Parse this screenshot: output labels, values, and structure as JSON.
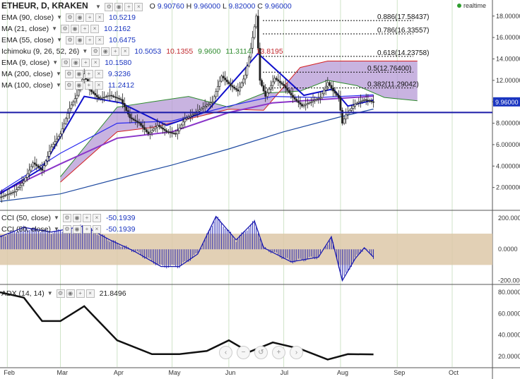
{
  "header": {
    "symbol": "ETHEUR, D, KRAKEN",
    "ohlc": [
      {
        "k": "O",
        "v": "9.90760"
      },
      {
        "k": "H",
        "v": "9.96000"
      },
      {
        "k": "L",
        "v": "9.82000"
      },
      {
        "k": "C",
        "v": "9.96000"
      }
    ],
    "realtime_label": "realtime"
  },
  "indicators": [
    {
      "name": "EMA (90, close)",
      "values": [
        "10.5219"
      ],
      "color": "#1a35c0"
    },
    {
      "name": "MA (21, close)",
      "values": [
        "10.2162"
      ],
      "color": "#1a35c0"
    },
    {
      "name": "EMA (55, close)",
      "values": [
        "10.6475"
      ],
      "color": "#1a35c0"
    },
    {
      "name": "Ichimoku (9, 26, 52, 26)",
      "values": [
        "10.5053",
        "10.1355",
        "9.9600",
        "11.3114",
        "13.8195"
      ],
      "colors": [
        "#1a35c0",
        "#c0282d",
        "#2e8b2e",
        "#2e8b2e",
        "#c0282d"
      ]
    },
    {
      "name": "EMA (9, close)",
      "values": [
        "10.1580"
      ],
      "color": "#1a35c0"
    },
    {
      "name": "MA (200, close)",
      "values": [
        "9.3236"
      ],
      "color": "#1a35c0"
    },
    {
      "name": "MA (100, close)",
      "values": [
        "11.2412"
      ],
      "color": "#1a35c0"
    }
  ],
  "cci_legend": [
    {
      "name": "CCI (50, close)",
      "value": "-50.1939"
    },
    {
      "name": "CCI (50, close)",
      "value": "-50.1939"
    }
  ],
  "adx_legend": {
    "name": "ADX (14, 14)",
    "value": "21.8496"
  },
  "icons": {
    "dropdown": "chevron-down-icon",
    "buttons": [
      "settings-icon",
      "eye-icon",
      "plus-icon",
      "close-icon"
    ],
    "nav": [
      "scroll-left-icon",
      "zoom-out-icon",
      "reset-icon",
      "zoom-in-icon",
      "scroll-right-icon"
    ]
  },
  "nav_glyphs": [
    "‹",
    "−",
    "↺",
    "+",
    "›"
  ],
  "chart_data": {
    "type": "candlestick",
    "x_ticks": [
      "Feb",
      "Mar",
      "Apr",
      "May",
      "Jun",
      "Jul",
      "Aug",
      "Sep",
      "Oct"
    ],
    "price_axis": {
      "ticks": [
        "18.000000",
        "16.000000",
        "14.000000",
        "12.000000",
        "10.000000",
        "8.000000",
        "6.000000",
        "4.000000",
        "2.000000"
      ],
      "range": [
        0,
        19.5
      ],
      "last_price": "9.96000",
      "horizontal_line": 9.0
    },
    "fibonacci": [
      {
        "label": "0.886(17.58437)",
        "value": 17.58437
      },
      {
        "label": "0.786(16.33557)",
        "value": 16.33557
      },
      {
        "label": "0.618(14.23758)",
        "value": 14.23758
      },
      {
        "label": "0.5(12.76400)",
        "value": 12.764
      },
      {
        "label": "0.382(11.29042)",
        "value": 11.29042
      }
    ],
    "price_path": [
      [
        "2016-01-28",
        1.1
      ],
      [
        "2016-02-05",
        1.6
      ],
      [
        "2016-02-10",
        2.6
      ],
      [
        "2016-02-15",
        4.3
      ],
      [
        "2016-02-20",
        3.6
      ],
      [
        "2016-02-25",
        5.8
      ],
      [
        "2016-03-01",
        7.0
      ],
      [
        "2016-03-06",
        9.4
      ],
      [
        "2016-03-10",
        10.6
      ],
      [
        "2016-03-14",
        12.6
      ],
      [
        "2016-03-17",
        11.1
      ],
      [
        "2016-03-22",
        10.3
      ],
      [
        "2016-03-28",
        10.6
      ],
      [
        "2016-04-03",
        10.2
      ],
      [
        "2016-04-08",
        8.5
      ],
      [
        "2016-04-13",
        8.0
      ],
      [
        "2016-04-18",
        7.0
      ],
      [
        "2016-04-23",
        7.8
      ],
      [
        "2016-04-28",
        7.2
      ],
      [
        "2016-05-03",
        7.0
      ],
      [
        "2016-05-08",
        8.4
      ],
      [
        "2016-05-13",
        8.9
      ],
      [
        "2016-05-18",
        9.5
      ],
      [
        "2016-05-23",
        10.0
      ],
      [
        "2016-05-28",
        12.4
      ],
      [
        "2016-06-02",
        11.5
      ],
      [
        "2016-06-06",
        11.0
      ],
      [
        "2016-06-10",
        12.5
      ],
      [
        "2016-06-13",
        15.0
      ],
      [
        "2016-06-16",
        18.0
      ],
      [
        "2016-06-18",
        12.0
      ],
      [
        "2016-06-21",
        10.5
      ],
      [
        "2016-06-26",
        12.2
      ],
      [
        "2016-07-01",
        11.5
      ],
      [
        "2016-07-06",
        10.4
      ],
      [
        "2016-07-11",
        9.6
      ],
      [
        "2016-07-16",
        10.0
      ],
      [
        "2016-07-21",
        10.4
      ],
      [
        "2016-07-25",
        11.8
      ],
      [
        "2016-07-28",
        11.0
      ],
      [
        "2016-07-31",
        10.4
      ],
      [
        "2016-08-02",
        8.0
      ],
      [
        "2016-08-04",
        8.8
      ],
      [
        "2016-08-09",
        9.8
      ],
      [
        "2016-08-14",
        10.2
      ],
      [
        "2016-08-19",
        9.96
      ]
    ],
    "ma200_path": [
      [
        "2016-01-28",
        0.7
      ],
      [
        "2016-03-01",
        1.4
      ],
      [
        "2016-04-01",
        2.8
      ],
      [
        "2016-05-01",
        4.1
      ],
      [
        "2016-06-01",
        5.6
      ],
      [
        "2016-07-01",
        7.2
      ],
      [
        "2016-08-01",
        8.6
      ],
      [
        "2016-08-19",
        9.3236
      ]
    ],
    "ema90_path": [
      [
        "2016-01-28",
        1.5
      ],
      [
        "2016-03-01",
        4.2
      ],
      [
        "2016-04-01",
        6.6
      ],
      [
        "2016-05-01",
        7.2
      ],
      [
        "2016-06-01",
        9.0
      ],
      [
        "2016-06-25",
        9.9
      ],
      [
        "2016-07-20",
        10.2
      ],
      [
        "2016-08-19",
        10.5219
      ]
    ],
    "ema55_path": [
      [
        "2016-01-28",
        1.6
      ],
      [
        "2016-03-01",
        5.2
      ],
      [
        "2016-04-01",
        8.0
      ],
      [
        "2016-05-01",
        8.2
      ],
      [
        "2016-06-01",
        9.6
      ],
      [
        "2016-06-25",
        10.5
      ],
      [
        "2016-07-20",
        10.4
      ],
      [
        "2016-08-19",
        10.6475
      ]
    ],
    "ema9_path": [
      [
        "2016-01-28",
        1.4
      ],
      [
        "2016-02-20",
        3.8
      ],
      [
        "2016-03-14",
        10.5
      ],
      [
        "2016-04-03",
        9.9
      ],
      [
        "2016-04-28",
        7.8
      ],
      [
        "2016-05-20",
        9.1
      ],
      [
        "2016-06-02",
        11.6
      ],
      [
        "2016-06-17",
        14.5
      ],
      [
        "2016-06-28",
        12.8
      ],
      [
        "2016-07-12",
        10.6
      ],
      [
        "2016-07-28",
        11.2
      ],
      [
        "2016-08-05",
        9.6
      ],
      [
        "2016-08-19",
        10.158
      ]
    ],
    "ichimoku_cloud": {
      "span_a": [
        [
          "2016-03-01",
          3.0
        ],
        [
          "2016-04-01",
          9.5
        ],
        [
          "2016-04-20",
          10.0
        ],
        [
          "2016-05-10",
          10.5
        ],
        [
          "2016-06-01",
          9.5
        ],
        [
          "2016-06-20",
          10.8
        ],
        [
          "2016-07-10",
          11.0
        ],
        [
          "2016-07-25",
          12.0
        ],
        [
          "2016-08-10",
          11.5
        ],
        [
          "2016-08-25",
          10.4
        ],
        [
          "2016-09-12",
          10.1
        ]
      ],
      "span_b": [
        [
          "2016-03-01",
          2.5
        ],
        [
          "2016-04-01",
          7.2
        ],
        [
          "2016-04-20",
          7.6
        ],
        [
          "2016-05-10",
          8.4
        ],
        [
          "2016-06-01",
          9.3
        ],
        [
          "2016-06-20",
          9.2
        ],
        [
          "2016-07-10",
          13.2
        ],
        [
          "2016-07-25",
          13.8
        ],
        [
          "2016-08-10",
          13.8
        ],
        [
          "2016-08-25",
          13.8
        ],
        [
          "2016-09-12",
          13.8
        ]
      ]
    },
    "cci": {
      "ticks": [
        "200.0000",
        "0.0000",
        "-200.0000"
      ],
      "band": [
        -100,
        100
      ],
      "range": [
        -220,
        240
      ],
      "path": [
        [
          "2016-01-28",
          80
        ],
        [
          "2016-02-10",
          140
        ],
        [
          "2016-02-25",
          110
        ],
        [
          "2016-03-14",
          150
        ],
        [
          "2016-03-28",
          60
        ],
        [
          "2016-04-10",
          -10
        ],
        [
          "2016-04-25",
          -110
        ],
        [
          "2016-05-05",
          -110
        ],
        [
          "2016-05-15",
          -30
        ],
        [
          "2016-05-25",
          210
        ],
        [
          "2016-06-05",
          60
        ],
        [
          "2016-06-15",
          180
        ],
        [
          "2016-06-20",
          10
        ],
        [
          "2016-07-05",
          -80
        ],
        [
          "2016-07-20",
          -50
        ],
        [
          "2016-07-27",
          80
        ],
        [
          "2016-08-02",
          -200
        ],
        [
          "2016-08-09",
          -60
        ],
        [
          "2016-08-14",
          10
        ],
        [
          "2016-08-19",
          -50.1939
        ]
      ]
    },
    "adx": {
      "ticks": [
        "80.0000",
        "60.0000",
        "40.0000",
        "20.0000"
      ],
      "range": [
        10,
        86
      ],
      "path": [
        [
          "2016-01-28",
          80
        ],
        [
          "2016-02-10",
          75
        ],
        [
          "2016-02-20",
          53
        ],
        [
          "2016-03-01",
          53
        ],
        [
          "2016-03-14",
          67
        ],
        [
          "2016-04-01",
          35
        ],
        [
          "2016-04-20",
          22
        ],
        [
          "2016-05-05",
          22
        ],
        [
          "2016-05-20",
          25
        ],
        [
          "2016-06-01",
          35
        ],
        [
          "2016-06-12",
          24
        ],
        [
          "2016-06-25",
          33
        ],
        [
          "2016-07-10",
          27
        ],
        [
          "2016-07-25",
          17
        ],
        [
          "2016-08-05",
          22
        ],
        [
          "2016-08-19",
          21.8496
        ]
      ]
    },
    "colors": {
      "price": "#222222",
      "ma200": "#1f4aa0",
      "ema90": "#8a35c9",
      "ema55": "#2a2af0",
      "ema9": "#1010cc",
      "span_a": "#2e8b2e",
      "span_b": "#d42020",
      "cloud": "#b59ad6",
      "cci": "#1a1ab0",
      "cci_band": "#ddc8a8",
      "adx": "#111111",
      "grid": "#cfe3c8",
      "hline": "#1a1aa8"
    }
  }
}
